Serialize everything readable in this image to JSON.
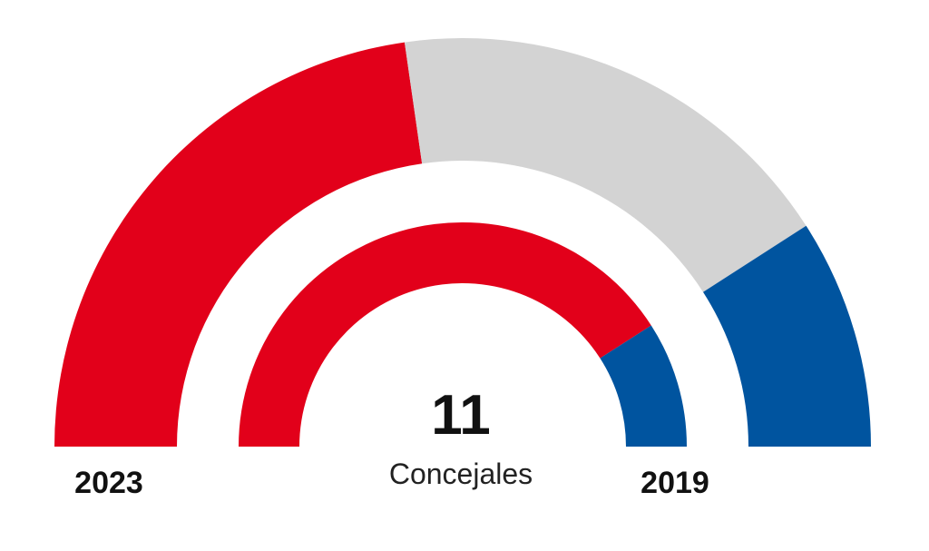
{
  "chart_data": {
    "type": "pie",
    "style": "parliament-semicircle",
    "total": {
      "value": "11",
      "label": "Concejales"
    },
    "outer": {
      "label": "2023",
      "segments": [
        {
          "color": "#e2001a",
          "value": 5
        },
        {
          "color": "#d3d3d3",
          "value": 4
        },
        {
          "color": "#00549f",
          "value": 2
        }
      ]
    },
    "inner": {
      "label": "2019",
      "segments": [
        {
          "color": "#e2001a",
          "value": 9
        },
        {
          "color": "#00549f",
          "value": 2
        }
      ]
    }
  }
}
